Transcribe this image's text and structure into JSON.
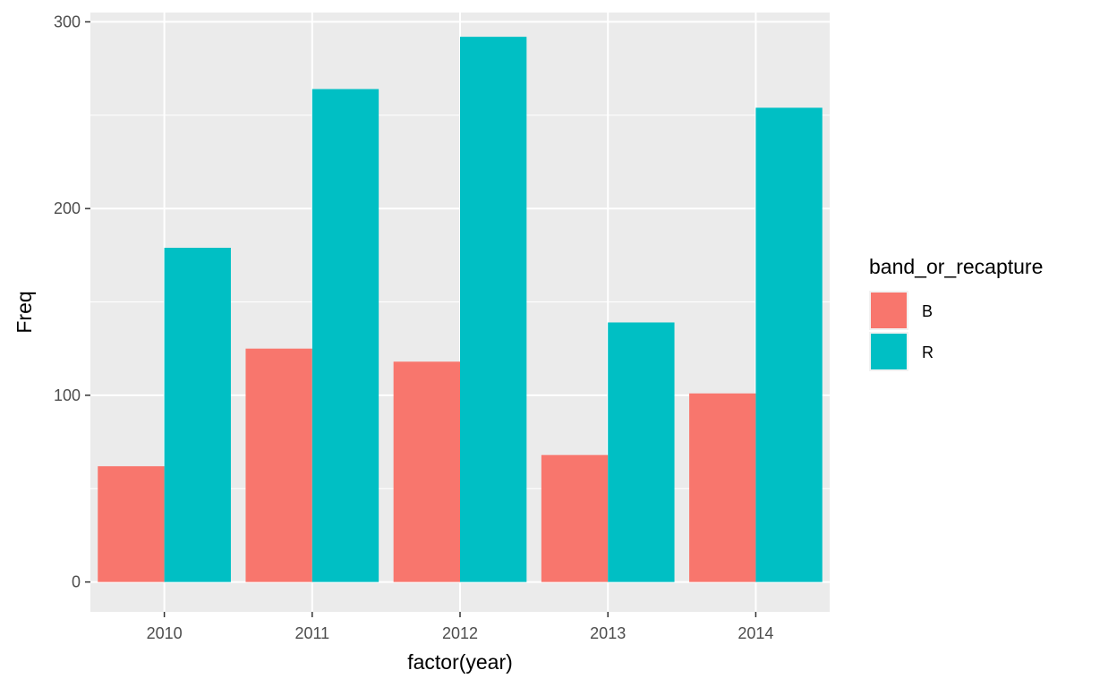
{
  "chart_data": {
    "type": "bar",
    "categories": [
      "2010",
      "2011",
      "2012",
      "2013",
      "2014"
    ],
    "series": [
      {
        "name": "B",
        "color": "#F8766D",
        "values": [
          62,
          125,
          118,
          68,
          101
        ]
      },
      {
        "name": "R",
        "color": "#00BFC4",
        "values": [
          179,
          264,
          292,
          139,
          254
        ]
      }
    ],
    "title": "",
    "xlabel": "factor(year)",
    "ylabel": "Freq",
    "ylim": [
      -16,
      305
    ],
    "yticks": [
      "0",
      "100",
      "200",
      "300"
    ],
    "grid": true,
    "legend": {
      "title": "band_or_recapture",
      "position": "right"
    }
  }
}
